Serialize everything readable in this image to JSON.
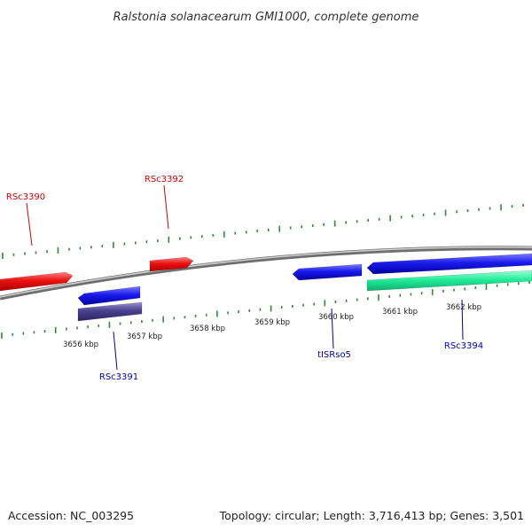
{
  "title": "Ralstonia solanacearum GMI1000, complete genome",
  "footer": {
    "accession": "Accession: NC_003295",
    "summary": "Topology: circular; Length: 3,716,413 bp; Genes: 3,501"
  },
  "colors": {
    "backbone": "#8a8a8a",
    "tick": "#2e8b2e",
    "forward_gene": "#ee1111",
    "reverse_gene": "#1a1aee",
    "rna_gene": "#4a4090",
    "other_feature": "#22ee99",
    "forward_label": "#cc0000",
    "reverse_label": "#0000aa"
  },
  "scale": {
    "labels": [
      "3656 kbp",
      "3657 kbp",
      "3658 kbp",
      "3659 kbp",
      "3660 kbp",
      "3661 kbp",
      "3662 kbp"
    ]
  },
  "features": [
    {
      "strand": "forward",
      "kind": "gene"
    },
    {
      "strand": "forward",
      "kind": "gene"
    },
    {
      "strand": "reverse",
      "kind": "gene"
    },
    {
      "strand": "reverse",
      "kind": "rna"
    },
    {
      "strand": "reverse",
      "kind": "gene"
    },
    {
      "strand": "reverse",
      "kind": "gene"
    },
    {
      "strand": "reverse",
      "kind": "other"
    }
  ],
  "gene_labels": [
    {
      "text": "RSc3390",
      "strand": "forward"
    },
    {
      "text": "RSc3392",
      "strand": "forward"
    },
    {
      "text": "RSc3391",
      "strand": "reverse"
    },
    {
      "text": "tISRso5",
      "strand": "reverse"
    },
    {
      "text": "RSc3394",
      "strand": "reverse"
    }
  ]
}
